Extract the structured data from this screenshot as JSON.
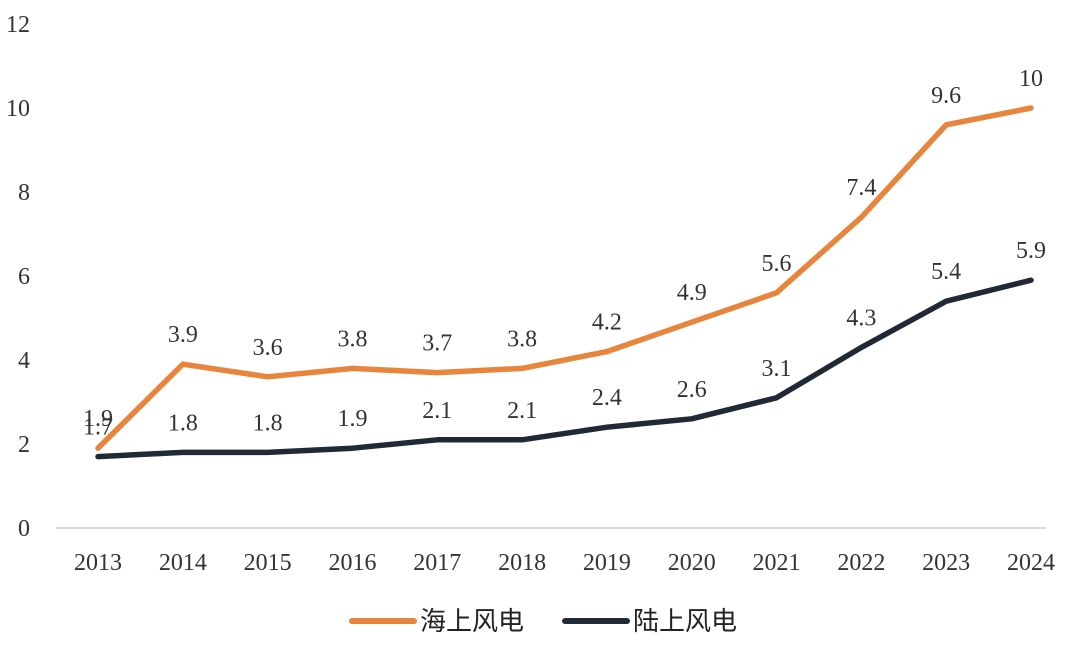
{
  "chart_data": {
    "type": "line",
    "title": "",
    "xlabel": "",
    "ylabel": "",
    "ylim": [
      0,
      12
    ],
    "yticks": [
      0,
      2,
      4,
      6,
      8,
      10,
      12
    ],
    "grid": false,
    "legend_position": "bottom",
    "categories": [
      "2013",
      "2014",
      "2015",
      "2016",
      "2017",
      "2018",
      "2019",
      "2020",
      "2021",
      "2022",
      "2023",
      "2024"
    ],
    "series": [
      {
        "name": "海上风电",
        "color": "#E8853D",
        "values": [
          1.9,
          3.9,
          3.6,
          3.8,
          3.7,
          3.8,
          4.2,
          4.9,
          5.6,
          7.4,
          9.6,
          10
        ],
        "labels": [
          "1.9",
          "3.9",
          "3.6",
          "3.8",
          "3.7",
          "3.8",
          "4.2",
          "4.9",
          "5.6",
          "7.4",
          "9.6",
          "10"
        ]
      },
      {
        "name": "陆上风电",
        "color": "#1F2A36",
        "values": [
          1.7,
          1.8,
          1.8,
          1.9,
          2.1,
          2.1,
          2.4,
          2.6,
          3.1,
          4.3,
          5.4,
          5.9
        ],
        "labels": [
          "1.7",
          "1.8",
          "1.8",
          "1.9",
          "2.1",
          "2.1",
          "2.4",
          "2.6",
          "3.1",
          "4.3",
          "5.4",
          "5.9"
        ]
      }
    ]
  }
}
